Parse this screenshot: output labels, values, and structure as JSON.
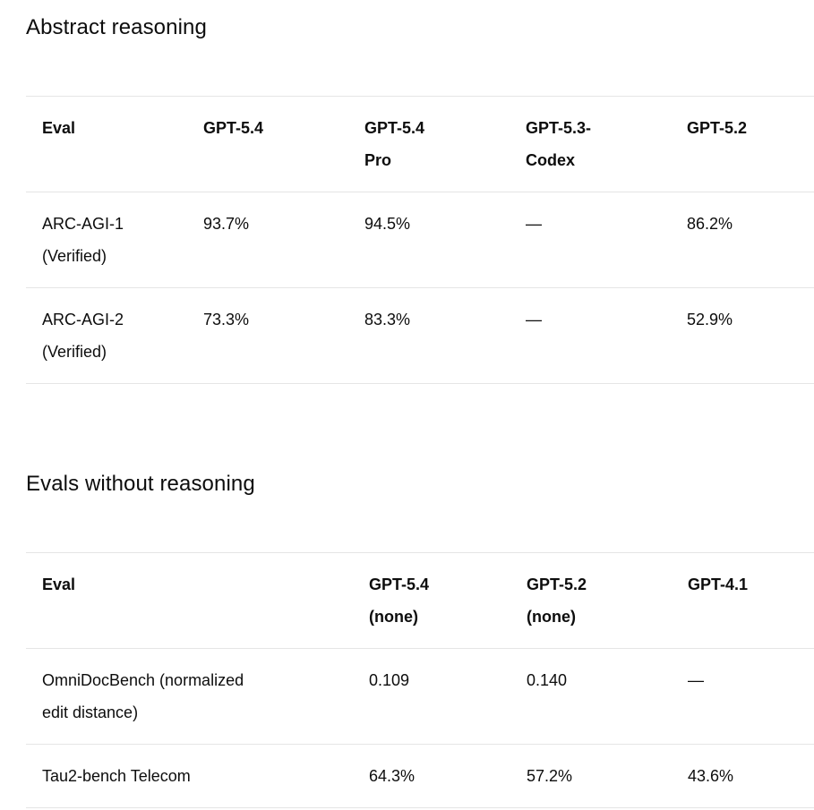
{
  "colors": {
    "background": "#ffffff",
    "text": "#0d0d0d",
    "table_border": "#e5e5e5"
  },
  "sections": [
    {
      "heading": "Abstract reasoning",
      "table": {
        "columns": [
          "Eval",
          "GPT-5.4",
          "GPT-5.4 Pro",
          "GPT-5.3-Codex",
          "GPT-5.2"
        ],
        "rows": [
          [
            "ARC-AGI-1 (Verified)",
            "93.7%",
            "94.5%",
            "—",
            "86.2%"
          ],
          [
            "ARC-AGI-2 (Verified)",
            "73.3%",
            "83.3%",
            "—",
            "52.9%"
          ]
        ]
      }
    },
    {
      "heading": "Evals without reasoning",
      "table": {
        "columns": [
          "Eval",
          "GPT-5.4 (none)",
          "GPT-5.2 (none)",
          "GPT-4.1"
        ],
        "rows": [
          [
            "OmniDocBench (normalized edit distance)",
            "0.109",
            "0.140",
            "—"
          ],
          [
            "Tau2-bench Telecom",
            "64.3%",
            "57.2%",
            "43.6%"
          ]
        ]
      }
    }
  ]
}
